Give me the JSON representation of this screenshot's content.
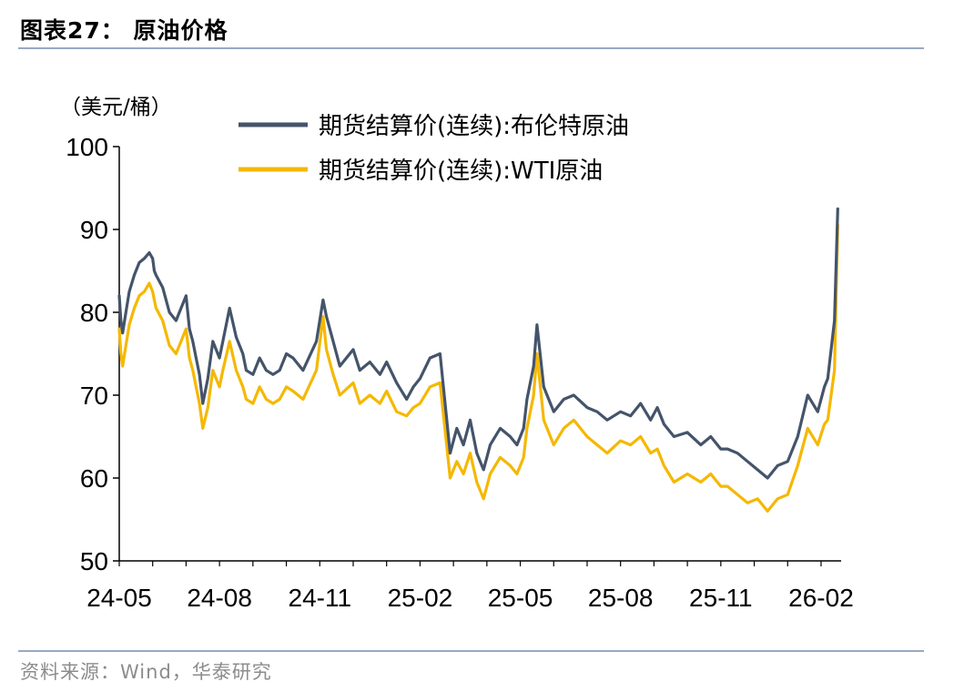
{
  "figure": {
    "title": "图表27：  原油价格",
    "source": "资料来源：Wind，华泰研究"
  },
  "chart_data": {
    "type": "line",
    "title": "原油价格",
    "unit": "（美元/桶）",
    "xlabel": "",
    "ylabel": "美元/桶",
    "ylim": [
      50,
      100
    ],
    "yticks": [
      50,
      60,
      70,
      80,
      90,
      100
    ],
    "xticks": [
      "24-05",
      "24-08",
      "24-11",
      "25-02",
      "25-05",
      "25-08",
      "25-11",
      "26-02"
    ],
    "x_month_index": [
      0,
      3,
      6,
      9,
      12,
      15,
      18,
      21
    ],
    "grid": false,
    "legend": "top-left",
    "x": [
      0,
      0.05,
      0.1,
      0.2,
      0.3,
      0.45,
      0.6,
      0.75,
      0.9,
      1.0,
      1.05,
      1.1,
      1.3,
      1.5,
      1.7,
      2.0,
      2.1,
      2.2,
      2.3,
      2.4,
      2.5,
      2.65,
      2.8,
      3.0,
      3.1,
      3.3,
      3.5,
      3.7,
      3.8,
      4.0,
      4.2,
      4.4,
      4.6,
      4.8,
      5.0,
      5.2,
      5.5,
      5.9,
      6.1,
      6.2,
      6.4,
      6.6,
      7.0,
      7.2,
      7.5,
      7.8,
      8.0,
      8.3,
      8.6,
      8.8,
      9.0,
      9.3,
      9.6,
      9.9,
      10.1,
      10.3,
      10.5,
      10.7,
      10.9,
      11.1,
      11.4,
      11.7,
      11.9,
      12.1,
      12.2,
      12.4,
      12.5,
      12.7,
      13.0,
      13.3,
      13.6,
      14.0,
      14.3,
      14.6,
      15.0,
      15.3,
      15.6,
      15.9,
      16.1,
      16.3,
      16.6,
      17.0,
      17.4,
      17.7,
      18.0,
      18.2,
      18.5,
      18.8,
      19.1,
      19.4,
      19.7,
      20.0,
      20.3,
      20.6,
      20.9,
      21.1,
      21.2,
      21.4,
      21.5
    ],
    "series": [
      {
        "name": "期货结算价(连续):布伦特原油",
        "color": "#44546a",
        "values": [
          82,
          79,
          77.5,
          80,
          82.5,
          84.5,
          86,
          86.5,
          87.2,
          86.5,
          85,
          84.5,
          83,
          80,
          79,
          82,
          78,
          76.5,
          74.5,
          72.5,
          69,
          72,
          76.5,
          74.5,
          76.5,
          80.5,
          77,
          75,
          73,
          72.5,
          74.5,
          73,
          72.5,
          73,
          75,
          74.5,
          73,
          76.5,
          81.5,
          79.5,
          76.5,
          73.5,
          75.5,
          73,
          74,
          72.5,
          74,
          71.5,
          69.5,
          71,
          72,
          74.5,
          75,
          63,
          66,
          64,
          67,
          63,
          61,
          64,
          66,
          65,
          64,
          66,
          69.5,
          73.5,
          78.5,
          71,
          68,
          69.5,
          70,
          68.5,
          68,
          67,
          68,
          67.5,
          69,
          67,
          68.5,
          66.5,
          65,
          65.5,
          64,
          65,
          63.5,
          63.5,
          63,
          62,
          61,
          60,
          61.5,
          62,
          65,
          70,
          68,
          71,
          72,
          79,
          92.5
        ]
      },
      {
        "name": "期货结算价(连续):WTI原油",
        "color": "#f5b800",
        "values": [
          78,
          75,
          73.5,
          76,
          78.5,
          80.5,
          82,
          82.5,
          83.5,
          82.5,
          81.5,
          80.5,
          79,
          76,
          75,
          78,
          74.5,
          73,
          71,
          69,
          66,
          68.5,
          73,
          71,
          73,
          76.5,
          73,
          71,
          69.5,
          69,
          71,
          69.5,
          69,
          69.5,
          71,
          70.5,
          69.5,
          73,
          79.5,
          75.5,
          72.5,
          70,
          71.5,
          69,
          70,
          69,
          70.5,
          68,
          67.5,
          68.5,
          69,
          71,
          71.5,
          60,
          62,
          60.5,
          63,
          59.5,
          57.5,
          60.5,
          62.5,
          61.5,
          60.5,
          62.5,
          66,
          70,
          75,
          67,
          64,
          66,
          67,
          65,
          64,
          63,
          64.5,
          64,
          65,
          63,
          63.5,
          61.5,
          59.5,
          60.5,
          59.5,
          60.5,
          59,
          59,
          58,
          57,
          57.5,
          56,
          57.5,
          58,
          61.5,
          66,
          64,
          66.5,
          67,
          73,
          90.5
        ]
      }
    ]
  }
}
